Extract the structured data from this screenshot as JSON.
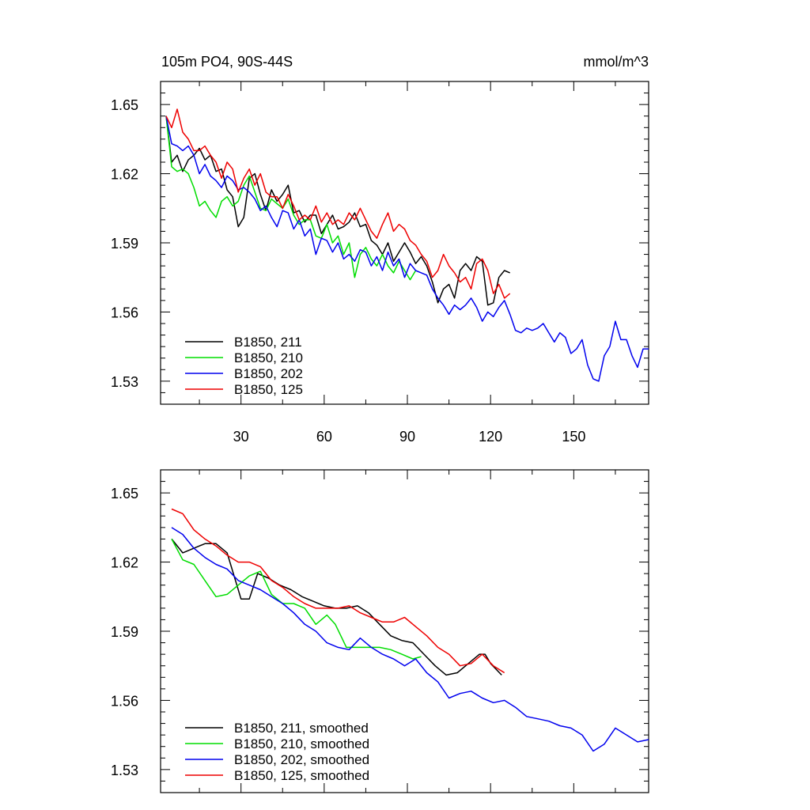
{
  "chart_data": [
    {
      "type": "line",
      "title_left": "105m PO4, 90S-44S",
      "title_right": "mmol/m^3",
      "xlabel": "",
      "ylabel": "",
      "xlim": [
        1,
        177
      ],
      "ylim": [
        1.52,
        1.66
      ],
      "xticks": [
        30,
        60,
        90,
        120,
        150
      ],
      "yticks": [
        1.53,
        1.56,
        1.59,
        1.62,
        1.65
      ],
      "ytick_labels": [
        "1.53",
        "1.56",
        "1.59",
        "1.62",
        "1.65"
      ],
      "xtick_labels": [
        "30",
        "60",
        "90",
        "120",
        "150"
      ],
      "legend": [
        "B1850, 211",
        "B1850, 210",
        "B1850, 202",
        "B1850, 125"
      ],
      "series": [
        {
          "name": "B1850, 211",
          "color": "#000000",
          "x": [
            3,
            5,
            7,
            9,
            11,
            13,
            15,
            17,
            19,
            21,
            23,
            25,
            27,
            29,
            31,
            33,
            35,
            37,
            39,
            41,
            43,
            45,
            47,
            49,
            51,
            53,
            55,
            57,
            59,
            61,
            63,
            65,
            67,
            69,
            71,
            73,
            75,
            77,
            79,
            81,
            83,
            85,
            87,
            89,
            91,
            93,
            95,
            97,
            99,
            101,
            103,
            105,
            107,
            109,
            111,
            113,
            115,
            117,
            119,
            121,
            123,
            125,
            127
          ],
          "y": [
            1.645,
            1.625,
            1.628,
            1.621,
            1.626,
            1.628,
            1.631,
            1.626,
            1.628,
            1.621,
            1.622,
            1.613,
            1.61,
            1.597,
            1.601,
            1.618,
            1.62,
            1.611,
            1.604,
            1.613,
            1.608,
            1.611,
            1.615,
            1.603,
            1.604,
            1.599,
            1.602,
            1.602,
            1.594,
            1.598,
            1.602,
            1.596,
            1.597,
            1.599,
            1.603,
            1.597,
            1.598,
            1.591,
            1.589,
            1.585,
            1.59,
            1.582,
            1.586,
            1.59,
            1.586,
            1.581,
            1.584,
            1.58,
            1.573,
            1.564,
            1.57,
            1.572,
            1.566,
            1.578,
            1.581,
            1.578,
            1.584,
            1.582,
            1.563,
            1.564,
            1.575,
            1.578,
            1.577
          ]
        },
        {
          "name": "B1850, 210",
          "color": "#00dd00",
          "x": [
            3,
            5,
            7,
            9,
            11,
            13,
            15,
            17,
            19,
            21,
            23,
            25,
            27,
            29,
            31,
            33,
            35,
            37,
            39,
            41,
            43,
            45,
            47,
            49,
            51,
            53,
            55,
            57,
            59,
            61,
            63,
            65,
            67,
            69,
            71,
            73,
            75,
            77,
            79,
            81,
            83,
            85,
            87,
            89,
            91,
            93
          ],
          "y": [
            1.645,
            1.623,
            1.621,
            1.622,
            1.62,
            1.614,
            1.606,
            1.608,
            1.604,
            1.601,
            1.608,
            1.61,
            1.606,
            1.608,
            1.615,
            1.619,
            1.612,
            1.605,
            1.604,
            1.609,
            1.607,
            1.605,
            1.609,
            1.602,
            1.598,
            1.6,
            1.6,
            1.593,
            1.592,
            1.598,
            1.59,
            1.593,
            1.585,
            1.59,
            1.575,
            1.585,
            1.588,
            1.583,
            1.58,
            1.585,
            1.58,
            1.577,
            1.582,
            1.578,
            1.574,
            1.578
          ]
        },
        {
          "name": "B1850, 202",
          "color": "#0000ee",
          "x": [
            3,
            5,
            7,
            9,
            11,
            13,
            15,
            17,
            19,
            21,
            23,
            25,
            27,
            29,
            31,
            33,
            35,
            37,
            39,
            41,
            43,
            45,
            47,
            49,
            51,
            53,
            55,
            57,
            59,
            61,
            63,
            65,
            67,
            69,
            71,
            73,
            75,
            77,
            79,
            81,
            83,
            85,
            87,
            89,
            91,
            93,
            95,
            97,
            99,
            101,
            103,
            105,
            107,
            109,
            111,
            113,
            115,
            117,
            119,
            121,
            123,
            125,
            127,
            129,
            131,
            133,
            135,
            137,
            139,
            141,
            143,
            145,
            147,
            149,
            151,
            153,
            155,
            157,
            159,
            161,
            163,
            165,
            167,
            169,
            171,
            173,
            175,
            177
          ],
          "y": [
            1.645,
            1.633,
            1.632,
            1.63,
            1.632,
            1.628,
            1.62,
            1.624,
            1.619,
            1.617,
            1.614,
            1.619,
            1.617,
            1.613,
            1.614,
            1.612,
            1.609,
            1.604,
            1.606,
            1.601,
            1.597,
            1.604,
            1.603,
            1.596,
            1.6,
            1.593,
            1.596,
            1.585,
            1.592,
            1.591,
            1.586,
            1.59,
            1.583,
            1.585,
            1.582,
            1.587,
            1.586,
            1.58,
            1.584,
            1.578,
            1.586,
            1.58,
            1.583,
            1.575,
            1.581,
            1.578,
            1.577,
            1.576,
            1.57,
            1.566,
            1.563,
            1.559,
            1.563,
            1.561,
            1.563,
            1.566,
            1.562,
            1.556,
            1.56,
            1.558,
            1.562,
            1.565,
            1.559,
            1.552,
            1.551,
            1.553,
            1.552,
            1.553,
            1.555,
            1.551,
            1.547,
            1.551,
            1.549,
            1.542,
            1.544,
            1.548,
            1.537,
            1.531,
            1.53,
            1.541,
            1.545,
            1.556,
            1.548,
            1.548,
            1.541,
            1.536,
            1.544,
            1.544
          ]
        },
        {
          "name": "B1850, 125",
          "color": "#ee0000",
          "x": [
            3,
            5,
            7,
            9,
            11,
            13,
            15,
            17,
            19,
            21,
            23,
            25,
            27,
            29,
            31,
            33,
            35,
            37,
            39,
            41,
            43,
            45,
            47,
            49,
            51,
            53,
            55,
            57,
            59,
            61,
            63,
            65,
            67,
            69,
            71,
            73,
            75,
            77,
            79,
            81,
            83,
            85,
            87,
            89,
            91,
            93,
            95,
            97,
            99,
            101,
            103,
            105,
            107,
            109,
            111,
            113,
            115,
            117,
            119,
            121,
            123,
            125,
            127
          ],
          "y": [
            1.645,
            1.64,
            1.648,
            1.638,
            1.635,
            1.63,
            1.63,
            1.632,
            1.628,
            1.625,
            1.618,
            1.625,
            1.622,
            1.612,
            1.618,
            1.622,
            1.615,
            1.62,
            1.612,
            1.61,
            1.61,
            1.605,
            1.611,
            1.606,
            1.6,
            1.602,
            1.6,
            1.606,
            1.599,
            1.603,
            1.598,
            1.6,
            1.598,
            1.603,
            1.6,
            1.605,
            1.6,
            1.595,
            1.592,
            1.598,
            1.603,
            1.595,
            1.598,
            1.596,
            1.591,
            1.589,
            1.585,
            1.582,
            1.575,
            1.578,
            1.585,
            1.58,
            1.577,
            1.573,
            1.575,
            1.57,
            1.581,
            1.583,
            1.578,
            1.568,
            1.572,
            1.566,
            1.568
          ]
        }
      ]
    },
    {
      "type": "line",
      "title_left": "",
      "title_right": "",
      "xlabel": "",
      "ylabel": "",
      "xlim": [
        1,
        177
      ],
      "ylim": [
        1.52,
        1.66
      ],
      "xticks": [
        30,
        60,
        90,
        120,
        150
      ],
      "yticks": [
        1.53,
        1.56,
        1.59,
        1.62,
        1.65
      ],
      "ytick_labels": [
        "1.53",
        "1.56",
        "1.59",
        "1.62",
        "1.65"
      ],
      "legend": [
        "B1850, 211, smoothed",
        "B1850, 210, smoothed",
        "B1850, 202, smoothed",
        "B1850, 125, smoothed"
      ],
      "series": [
        {
          "name": "B1850, 211, smoothed",
          "color": "#000000",
          "x": [
            5,
            9,
            13,
            17,
            21,
            25,
            28,
            30,
            33,
            36,
            40,
            44,
            48,
            52,
            56,
            60,
            64,
            68,
            72,
            76,
            80,
            84,
            88,
            92,
            96,
            100,
            104,
            108,
            112,
            116,
            118,
            120,
            124
          ],
          "y": [
            1.63,
            1.624,
            1.626,
            1.628,
            1.628,
            1.624,
            1.612,
            1.604,
            1.604,
            1.615,
            1.613,
            1.61,
            1.608,
            1.605,
            1.603,
            1.601,
            1.6,
            1.6,
            1.601,
            1.598,
            1.593,
            1.588,
            1.586,
            1.585,
            1.58,
            1.575,
            1.571,
            1.572,
            1.576,
            1.58,
            1.58,
            1.576,
            1.571
          ]
        },
        {
          "name": "B1850, 210, smoothed",
          "color": "#00dd00",
          "x": [
            5,
            9,
            13,
            17,
            21,
            25,
            29,
            33,
            37,
            41,
            45,
            49,
            53,
            57,
            61,
            64,
            66,
            68,
            72,
            76,
            80,
            84,
            88,
            92,
            95
          ],
          "y": [
            1.63,
            1.621,
            1.619,
            1.612,
            1.605,
            1.606,
            1.61,
            1.614,
            1.616,
            1.606,
            1.602,
            1.602,
            1.6,
            1.593,
            1.597,
            1.593,
            1.588,
            1.583,
            1.583,
            1.583,
            1.583,
            1.582,
            1.58,
            1.578,
            1.579
          ]
        },
        {
          "name": "B1850, 202, smoothed",
          "color": "#0000ee",
          "x": [
            5,
            9,
            13,
            17,
            21,
            25,
            29,
            33,
            37,
            41,
            45,
            49,
            53,
            57,
            61,
            65,
            69,
            73,
            77,
            81,
            85,
            89,
            93,
            97,
            101,
            105,
            109,
            113,
            117,
            121,
            125,
            129,
            133,
            137,
            141,
            145,
            149,
            153,
            157,
            161,
            165,
            169,
            173,
            177
          ],
          "y": [
            1.635,
            1.632,
            1.626,
            1.622,
            1.619,
            1.617,
            1.612,
            1.61,
            1.608,
            1.605,
            1.602,
            1.598,
            1.593,
            1.59,
            1.585,
            1.583,
            1.582,
            1.587,
            1.583,
            1.58,
            1.578,
            1.575,
            1.578,
            1.572,
            1.568,
            1.561,
            1.563,
            1.564,
            1.561,
            1.559,
            1.56,
            1.557,
            1.553,
            1.552,
            1.551,
            1.549,
            1.548,
            1.545,
            1.538,
            1.541,
            1.548,
            1.545,
            1.542,
            1.543
          ]
        },
        {
          "name": "B1850, 125, smoothed",
          "color": "#ee0000",
          "x": [
            5,
            9,
            13,
            17,
            21,
            25,
            29,
            33,
            37,
            41,
            45,
            49,
            53,
            57,
            61,
            65,
            69,
            73,
            77,
            81,
            85,
            89,
            93,
            97,
            101,
            105,
            109,
            113,
            117,
            121,
            125
          ],
          "y": [
            1.643,
            1.641,
            1.634,
            1.63,
            1.627,
            1.623,
            1.62,
            1.62,
            1.618,
            1.612,
            1.609,
            1.605,
            1.602,
            1.6,
            1.6,
            1.6,
            1.601,
            1.598,
            1.596,
            1.594,
            1.594,
            1.596,
            1.592,
            1.588,
            1.583,
            1.58,
            1.575,
            1.576,
            1.58,
            1.575,
            1.572
          ]
        }
      ]
    }
  ]
}
